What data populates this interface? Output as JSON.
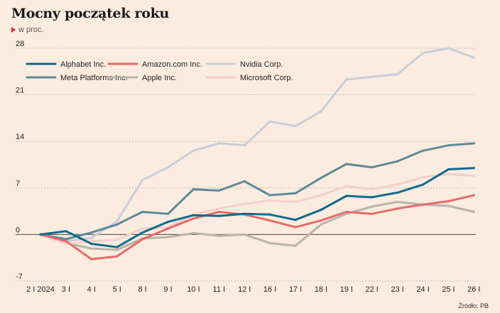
{
  "header": {
    "title": "Mocny początek roku",
    "subtitle": "w proc."
  },
  "source": "Źródło: PB",
  "chart_data": {
    "type": "line",
    "title": "Mocny początek roku",
    "subtitle": "w proc.",
    "xlabel": "",
    "ylabel": "",
    "categories": [
      "2 I 2024",
      "3 I",
      "4 I",
      "5 I",
      "8 I",
      "9 I",
      "10 I",
      "11 I",
      "12 I",
      "16 I",
      "17 I",
      "18 I",
      "19 I",
      "22 I",
      "23 I",
      "24 I",
      "25 I",
      "26 I"
    ],
    "ylim": [
      -7,
      28
    ],
    "yticks": [
      -7,
      0,
      7,
      14,
      21,
      28
    ],
    "grid": "horizontal dotted",
    "legend": "top-left",
    "series": [
      {
        "name": "Alphabet Inc.",
        "color": "#0f6a8f",
        "values": [
          0,
          0.5,
          -1.4,
          -1.9,
          0.3,
          1.9,
          2.9,
          2.8,
          3.1,
          3.0,
          2.2,
          3.7,
          5.8,
          5.6,
          6.3,
          7.5,
          9.8,
          10.0
        ]
      },
      {
        "name": "Amazon.com Inc.",
        "color": "#e86a6a",
        "values": [
          0,
          -1.0,
          -3.7,
          -3.3,
          -0.7,
          0.9,
          2.4,
          3.4,
          3.0,
          2.1,
          1.1,
          2.1,
          3.4,
          3.1,
          3.9,
          4.5,
          5.0,
          5.9
        ]
      },
      {
        "name": "Nvidia Corp.",
        "color": "#c9ccda",
        "values": [
          0,
          -1.0,
          -0.5,
          2.0,
          8.2,
          10.1,
          12.6,
          13.7,
          13.4,
          17.0,
          16.3,
          18.5,
          23.3,
          23.7,
          24.1,
          27.3,
          28.0,
          26.6
        ]
      },
      {
        "name": "Meta Platforms Inc.",
        "color": "#5c8a99",
        "values": [
          0,
          -0.7,
          0.3,
          1.5,
          3.4,
          3.1,
          6.8,
          6.6,
          8.0,
          5.9,
          6.2,
          8.5,
          10.6,
          10.1,
          11.0,
          12.6,
          13.4,
          13.7
        ]
      },
      {
        "name": "Apple Inc.",
        "color": "#b8b4a8",
        "values": [
          0,
          -1.3,
          -2.1,
          -2.3,
          -0.6,
          -0.4,
          0.2,
          -0.2,
          0.0,
          -1.3,
          -1.7,
          1.5,
          3.1,
          4.2,
          4.9,
          4.5,
          4.3,
          3.4
        ]
      },
      {
        "name": "Microsoft Corp.",
        "color": "#f6cfc9",
        "values": [
          0,
          -1.4,
          -1.0,
          -0.8,
          0.9,
          1.1,
          3.0,
          3.9,
          4.6,
          5.1,
          4.9,
          5.9,
          7.3,
          6.8,
          7.5,
          8.6,
          9.1,
          8.8
        ]
      }
    ]
  }
}
